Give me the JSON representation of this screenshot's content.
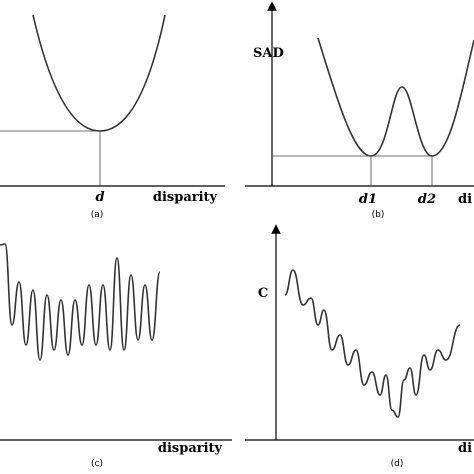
{
  "panels": [
    {
      "min_labels": [
        "d"
      ],
      "x_label": "disparity",
      "caption": "(a)"
    },
    {
      "y_label": "SAD",
      "min_labels": [
        "d1",
        "d2"
      ],
      "x_label": "di",
      "caption": "(b)"
    },
    {
      "x_label": "disparity",
      "caption": "(c)"
    },
    {
      "y_label": "C",
      "x_label": "di",
      "caption": "(d)"
    }
  ]
}
